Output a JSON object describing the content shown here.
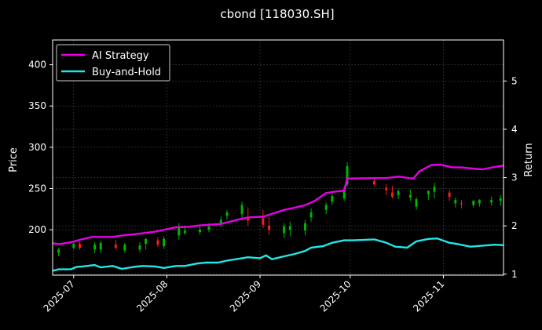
{
  "colors": {
    "background": "#000000",
    "foreground": "#ffffff",
    "grid": "#444444",
    "up_candle": "#00b400",
    "down_candle": "#ff1a1a",
    "ai_strategy": "#e600e6",
    "buy_and_hold": "#22e6e6"
  },
  "chart_data": {
    "type": "line",
    "title": "cbond [118030.SH]",
    "xlabel": "",
    "ylabel": "Price",
    "ylabel_right": "Return",
    "ylim": [
      145,
      430
    ],
    "ylim_right": [
      0.98,
      5.85
    ],
    "xlim": [
      "2025-06-24",
      "2025-11-21"
    ],
    "yticks": [
      200,
      250,
      300,
      350,
      400
    ],
    "yticks_right": [
      1,
      2,
      3,
      4,
      5
    ],
    "xticks": [
      "2025-07",
      "2025-08",
      "2025-09",
      "2025-10",
      "2025-11"
    ],
    "grid": true,
    "legend_position": "top-left",
    "series": [
      {
        "name": "AI Strategy",
        "axis": "right",
        "x": [
          "2025-06-24",
          "2025-06-26",
          "2025-06-30",
          "2025-07-03",
          "2025-07-07",
          "2025-07-14",
          "2025-07-18",
          "2025-07-22",
          "2025-07-28",
          "2025-08-04",
          "2025-08-08",
          "2025-08-12",
          "2025-08-19",
          "2025-08-26",
          "2025-08-29",
          "2025-09-02",
          "2025-09-09",
          "2025-09-12",
          "2025-09-16",
          "2025-09-19",
          "2025-09-23",
          "2025-09-26",
          "2025-09-29",
          "2025-09-30",
          "2025-10-09",
          "2025-10-13",
          "2025-10-17",
          "2025-10-22",
          "2025-10-24",
          "2025-10-28",
          "2025-10-31",
          "2025-11-04",
          "2025-11-07",
          "2025-11-12",
          "2025-11-14",
          "2025-11-18",
          "2025-11-21"
        ],
        "y": [
          1.64,
          1.62,
          1.66,
          1.71,
          1.77,
          1.77,
          1.81,
          1.83,
          1.88,
          1.97,
          1.98,
          2.01,
          2.04,
          2.15,
          2.18,
          2.19,
          2.33,
          2.37,
          2.43,
          2.51,
          2.68,
          2.71,
          2.73,
          2.98,
          2.99,
          2.99,
          3.02,
          2.98,
          3.13,
          3.26,
          3.27,
          3.21,
          3.21,
          3.18,
          3.17,
          3.22,
          3.25
        ]
      },
      {
        "name": "Buy-and-Hold",
        "axis": "right",
        "x": [
          "2025-06-24",
          "2025-06-26",
          "2025-06-30",
          "2025-07-02",
          "2025-07-04",
          "2025-07-08",
          "2025-07-10",
          "2025-07-14",
          "2025-07-17",
          "2025-07-21",
          "2025-07-24",
          "2025-07-28",
          "2025-07-31",
          "2025-08-04",
          "2025-08-07",
          "2025-08-11",
          "2025-08-14",
          "2025-08-18",
          "2025-08-21",
          "2025-08-25",
          "2025-08-28",
          "2025-09-01",
          "2025-09-03",
          "2025-09-05",
          "2025-09-09",
          "2025-09-12",
          "2025-09-16",
          "2025-09-18",
          "2025-09-22",
          "2025-09-25",
          "2025-09-29",
          "2025-10-02",
          "2025-10-09",
          "2025-10-13",
          "2025-10-16",
          "2025-10-20",
          "2025-10-23",
          "2025-10-27",
          "2025-10-30",
          "2025-11-03",
          "2025-11-06",
          "2025-11-10",
          "2025-11-14",
          "2025-11-18",
          "2025-11-21"
        ],
        "y": [
          1.07,
          1.1,
          1.1,
          1.15,
          1.16,
          1.19,
          1.14,
          1.17,
          1.11,
          1.15,
          1.17,
          1.16,
          1.13,
          1.17,
          1.17,
          1.22,
          1.24,
          1.24,
          1.28,
          1.32,
          1.35,
          1.33,
          1.39,
          1.31,
          1.37,
          1.41,
          1.48,
          1.55,
          1.58,
          1.65,
          1.7,
          1.7,
          1.72,
          1.65,
          1.57,
          1.55,
          1.68,
          1.73,
          1.74,
          1.65,
          1.62,
          1.57,
          1.59,
          1.61,
          1.6
        ]
      }
    ],
    "candlesticks": {
      "axis": "left",
      "date": [
        "2025-06-26",
        "2025-07-01",
        "2025-07-03",
        "2025-07-08",
        "2025-07-10",
        "2025-07-15",
        "2025-07-18",
        "2025-07-23",
        "2025-07-25",
        "2025-07-29",
        "2025-07-31",
        "2025-08-05",
        "2025-08-07",
        "2025-08-12",
        "2025-08-15",
        "2025-08-19",
        "2025-08-21",
        "2025-08-26",
        "2025-08-28",
        "2025-09-02",
        "2025-09-04",
        "2025-09-09",
        "2025-09-11",
        "2025-09-16",
        "2025-09-18",
        "2025-09-23",
        "2025-09-25",
        "2025-09-29",
        "2025-09-30",
        "2025-10-09",
        "2025-10-13",
        "2025-10-15",
        "2025-10-17",
        "2025-10-21",
        "2025-10-23",
        "2025-10-27",
        "2025-10-29",
        "2025-11-03",
        "2025-11-05",
        "2025-11-07",
        "2025-11-11",
        "2025-11-13",
        "2025-11-17",
        "2025-11-20"
      ],
      "open": [
        172,
        178,
        183,
        176,
        176,
        182,
        175,
        176,
        183,
        187,
        180,
        193,
        196,
        197,
        200,
        208,
        217,
        219,
        216,
        214,
        205,
        196,
        200,
        199,
        215,
        224,
        234,
        238,
        255,
        259,
        251,
        245,
        242,
        239,
        228,
        243,
        246,
        245,
        232,
        232,
        230,
        232,
        233,
        235
      ],
      "high": [
        178,
        186,
        186,
        185,
        187,
        188,
        184,
        185,
        190,
        191,
        192,
        208,
        205,
        205,
        208,
        216,
        224,
        234,
        227,
        224,
        215,
        208,
        210,
        212,
        226,
        233,
        244,
        253,
        282,
        262,
        255,
        253,
        249,
        249,
        240,
        248,
        257,
        248,
        239,
        236,
        236,
        237,
        240,
        242
      ],
      "low": [
        168,
        176,
        176,
        172,
        172,
        176,
        172,
        173,
        176,
        179,
        177,
        188,
        194,
        194,
        197,
        203,
        212,
        211,
        205,
        202,
        194,
        190,
        192,
        193,
        210,
        219,
        230,
        235,
        253,
        254,
        242,
        238,
        237,
        235,
        224,
        236,
        238,
        235,
        227,
        226,
        227,
        228,
        229,
        229
      ],
      "close": [
        176,
        183,
        178,
        182,
        184,
        178,
        182,
        181,
        189,
        182,
        189,
        203,
        199,
        200,
        204,
        212,
        221,
        230,
        211,
        206,
        200,
        204,
        204,
        208,
        221,
        230,
        241,
        249,
        277,
        255,
        248,
        240,
        247,
        242,
        237,
        247,
        252,
        240,
        236,
        231,
        235,
        236,
        236,
        238
      ]
    }
  }
}
